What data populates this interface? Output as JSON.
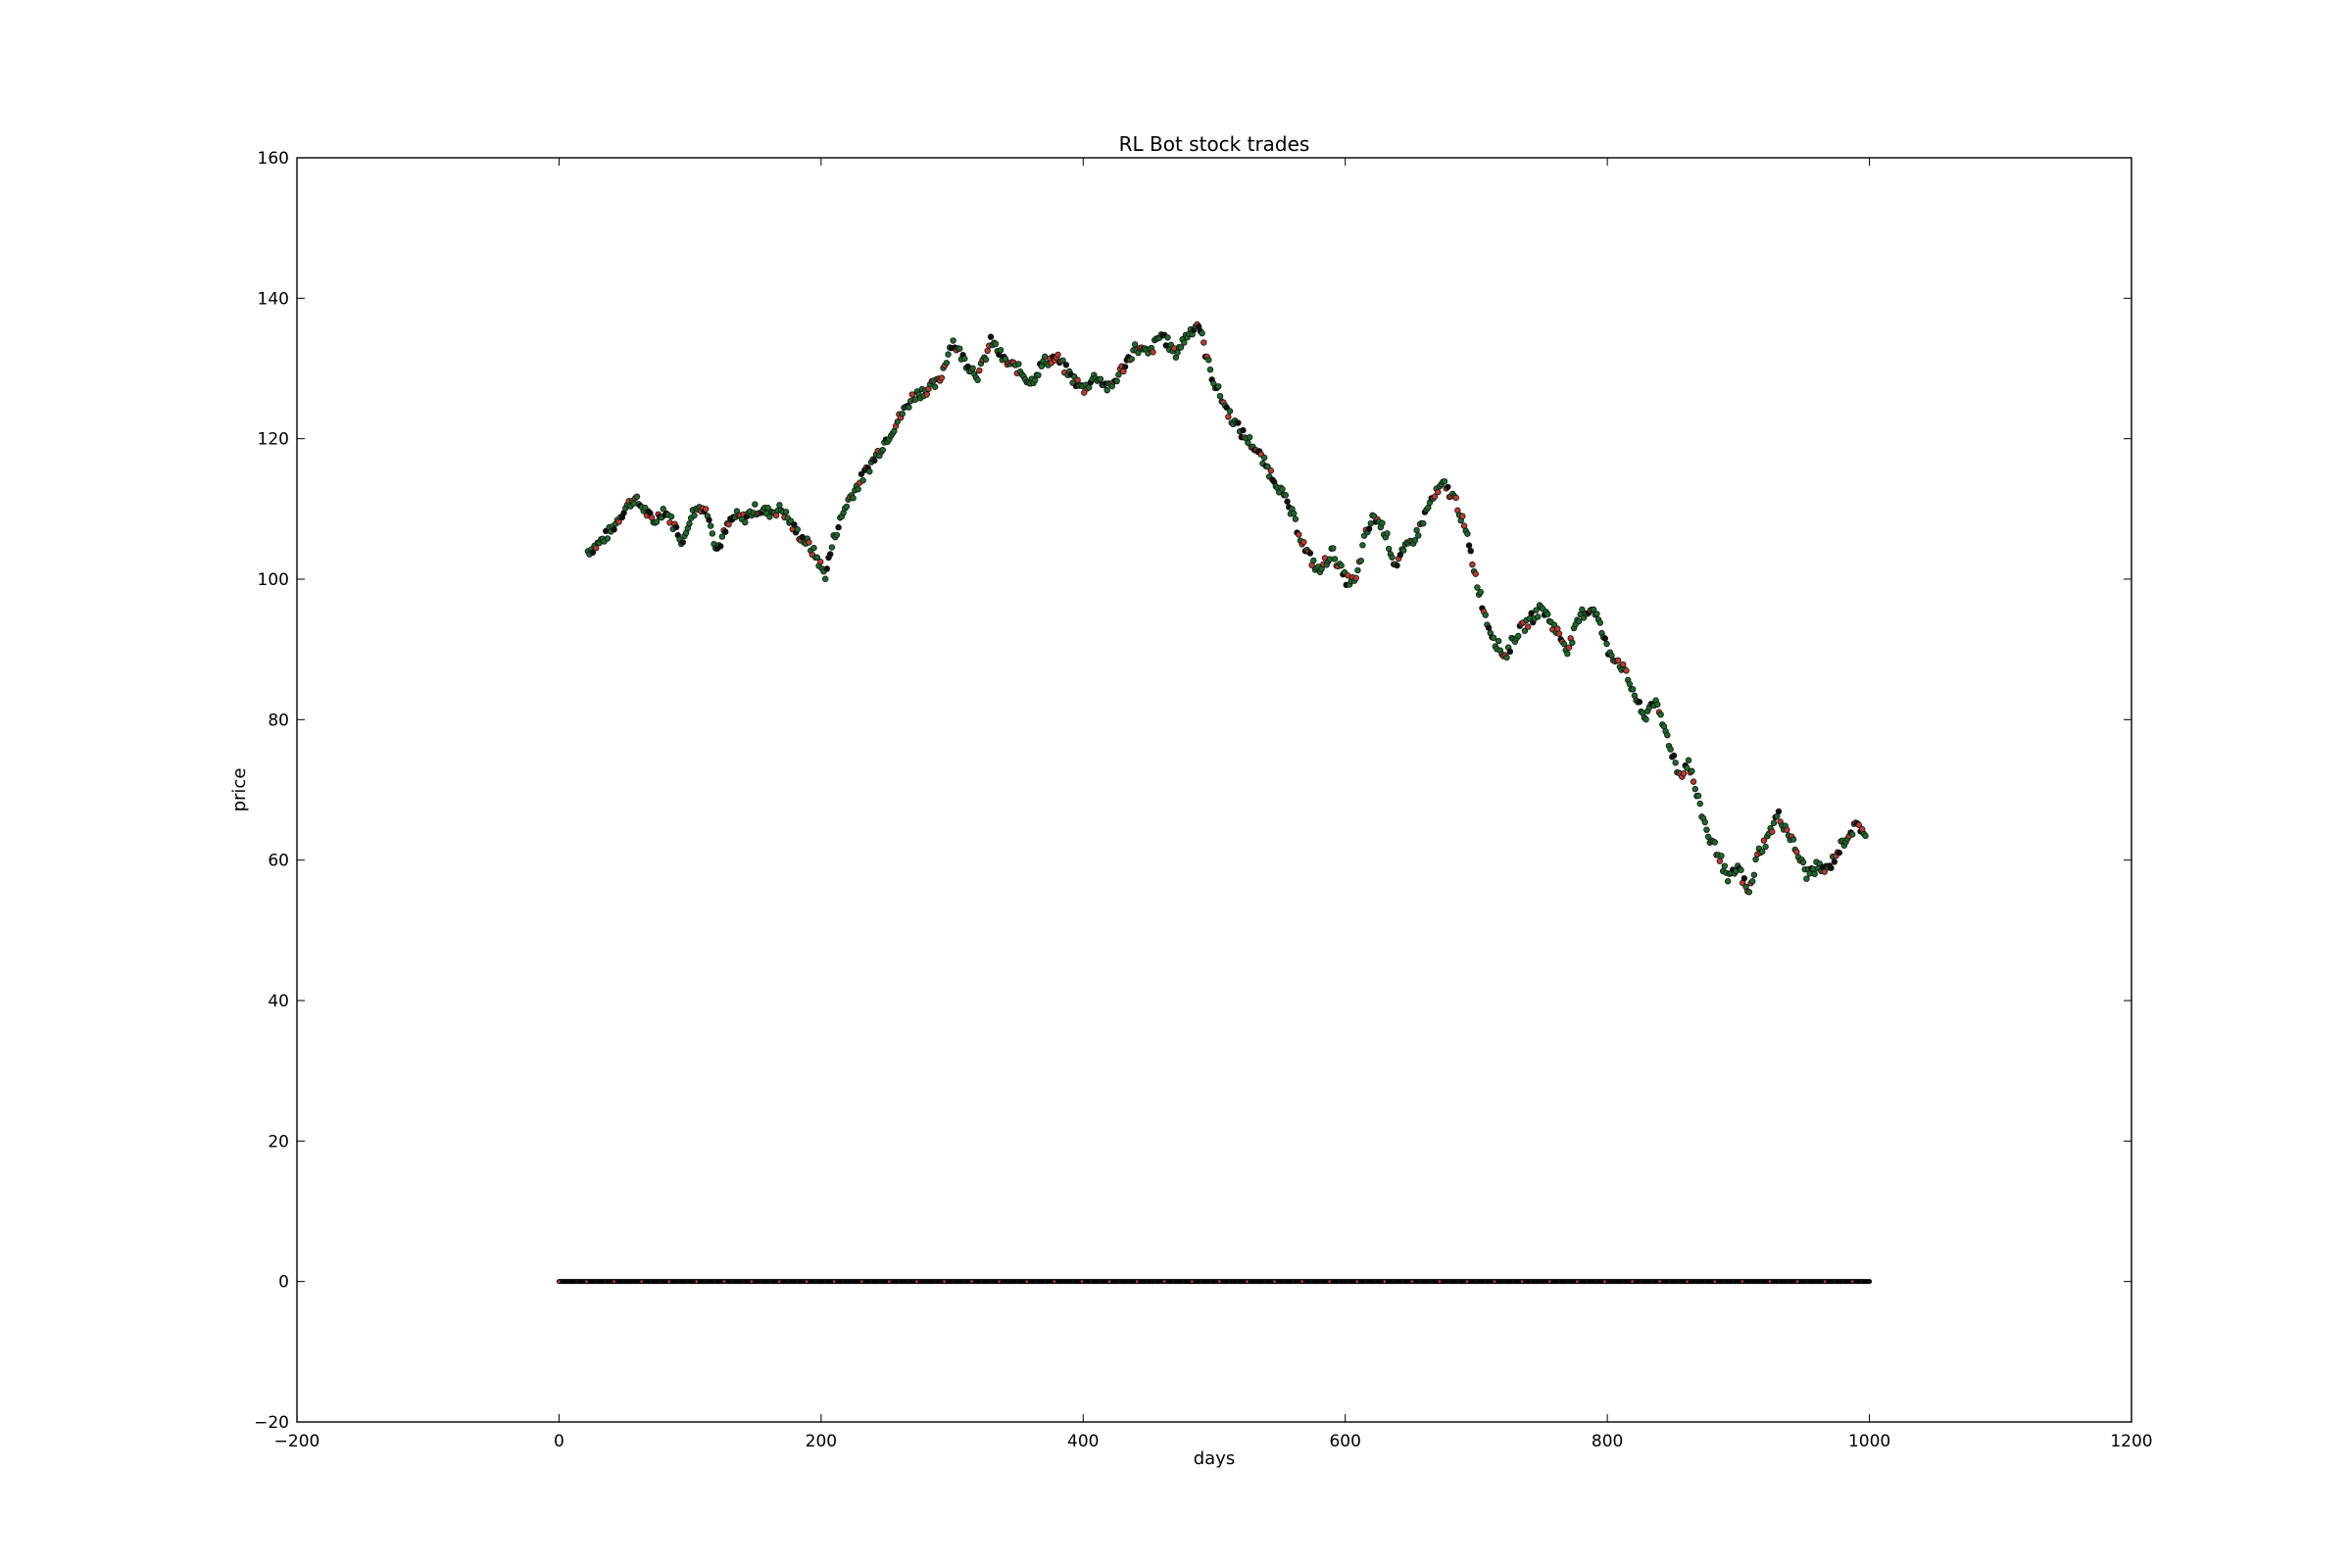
{
  "chart_data": {
    "type": "scatter",
    "title": "RL Bot stock trades",
    "xlabel": "days",
    "ylabel": "price",
    "xlim": [
      -200,
      1200
    ],
    "ylim": [
      -20,
      160
    ],
    "xticks": [
      -200,
      0,
      200,
      400,
      600,
      800,
      1000,
      1200
    ],
    "yticks": [
      -20,
      0,
      20,
      40,
      60,
      80,
      100,
      120,
      140,
      160
    ],
    "xtick_labels": [
      "−200",
      "0",
      "200",
      "400",
      "600",
      "800",
      "1000",
      "1200"
    ],
    "ytick_labels": [
      "−20",
      "0",
      "20",
      "40",
      "60",
      "80",
      "100",
      "120",
      "140",
      "160"
    ],
    "grid": false,
    "legend": "none",
    "colors": {
      "buy": "#1b6b2a",
      "sell": "#c0392b",
      "hold": "#111111",
      "baseline": "#000000"
    },
    "baseline": {
      "y": 0,
      "x_range": [
        0,
        1000
      ]
    },
    "price_anchors": {
      "x": [
        22,
        30,
        40,
        50,
        57,
        65,
        72,
        80,
        90,
        95,
        100,
        108,
        115,
        120,
        125,
        130,
        135,
        140,
        150,
        160,
        170,
        180,
        190,
        197,
        203,
        210,
        220,
        230,
        240,
        250,
        260,
        270,
        280,
        290,
        300,
        310,
        320,
        330,
        340,
        350,
        360,
        370,
        380,
        390,
        400,
        410,
        420,
        430,
        440,
        450,
        460,
        470,
        480,
        488,
        495,
        500,
        510,
        520,
        530,
        540,
        550,
        560,
        570,
        580,
        590,
        600,
        608,
        615,
        622,
        630,
        638,
        645,
        655,
        665,
        675,
        685,
        693,
        700,
        708,
        715,
        722,
        730,
        740,
        750,
        760,
        770,
        780,
        790,
        800,
        810,
        820,
        828,
        835,
        845,
        855,
        862,
        870,
        878,
        885,
        892,
        900,
        908,
        915,
        922,
        930,
        938,
        945,
        952,
        960,
        968,
        975,
        985,
        992,
        998
      ],
      "y": [
        104,
        105,
        107,
        110,
        111.5,
        110,
        108,
        110,
        107,
        105,
        109,
        110.5,
        109,
        104,
        106,
        108,
        109,
        108.5,
        110,
        109.5,
        110,
        107,
        105,
        103,
        100.5,
        106,
        111,
        114,
        117,
        120,
        123,
        126,
        127,
        128,
        134,
        131,
        129,
        134,
        131,
        130,
        128,
        131,
        131.5,
        129,
        127,
        129,
        127,
        130,
        133,
        132,
        135,
        132,
        135,
        136.5,
        131,
        128,
        124,
        121,
        119,
        116,
        113,
        109,
        104,
        101,
        104,
        100,
        99.5,
        106,
        109,
        107,
        102,
        104,
        106.5,
        111,
        113.5,
        111,
        106,
        100,
        94,
        91,
        89,
        92,
        94,
        96,
        93,
        90,
        95,
        96,
        90,
        88,
        84,
        80,
        83,
        78,
        72,
        74,
        68,
        63,
        61,
        57,
        59,
        55,
        61,
        63,
        66.5,
        64,
        61,
        58,
        59,
        58.5,
        61,
        64,
        65,
        63.5
      ]
    }
  }
}
